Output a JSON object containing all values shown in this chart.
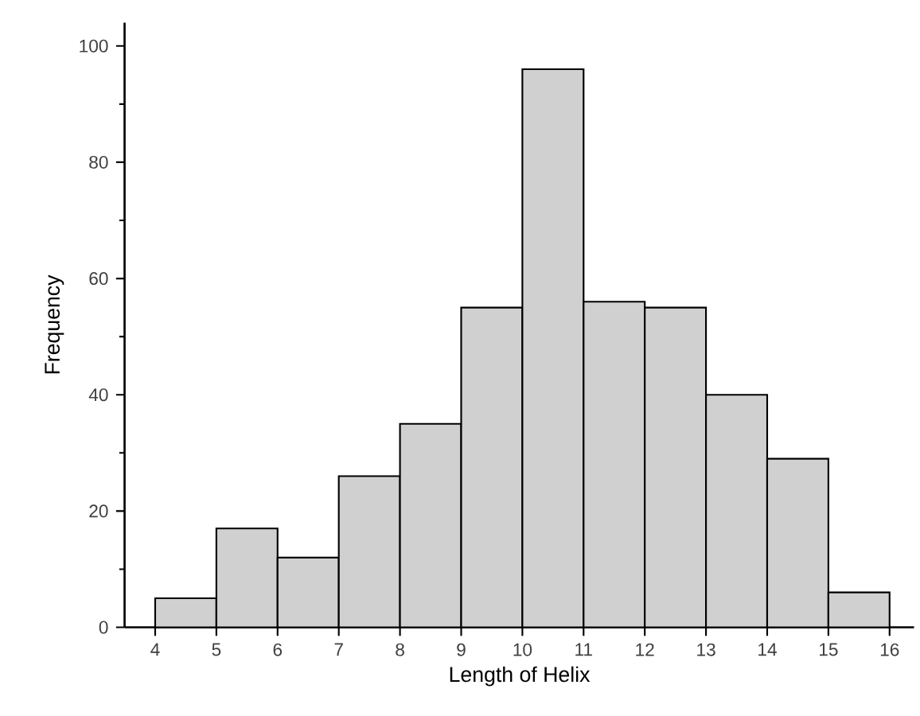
{
  "chart_data": {
    "type": "histogram",
    "xlabel": "Length of Helix",
    "ylabel": "Frequency",
    "bins": [
      4,
      5,
      6,
      7,
      8,
      9,
      10,
      11,
      12,
      13,
      14,
      15,
      16
    ],
    "values": [
      5,
      17,
      12,
      26,
      35,
      55,
      96,
      56,
      55,
      40,
      29,
      6
    ],
    "color": "#d0d0d0",
    "xlim": [
      3.5,
      16.4
    ],
    "ylim": [
      0,
      104
    ],
    "xticks": [
      4,
      5,
      6,
      7,
      8,
      9,
      10,
      11,
      12,
      13,
      14,
      15,
      16
    ],
    "yticks": [
      0,
      20,
      40,
      60,
      80,
      100
    ]
  }
}
